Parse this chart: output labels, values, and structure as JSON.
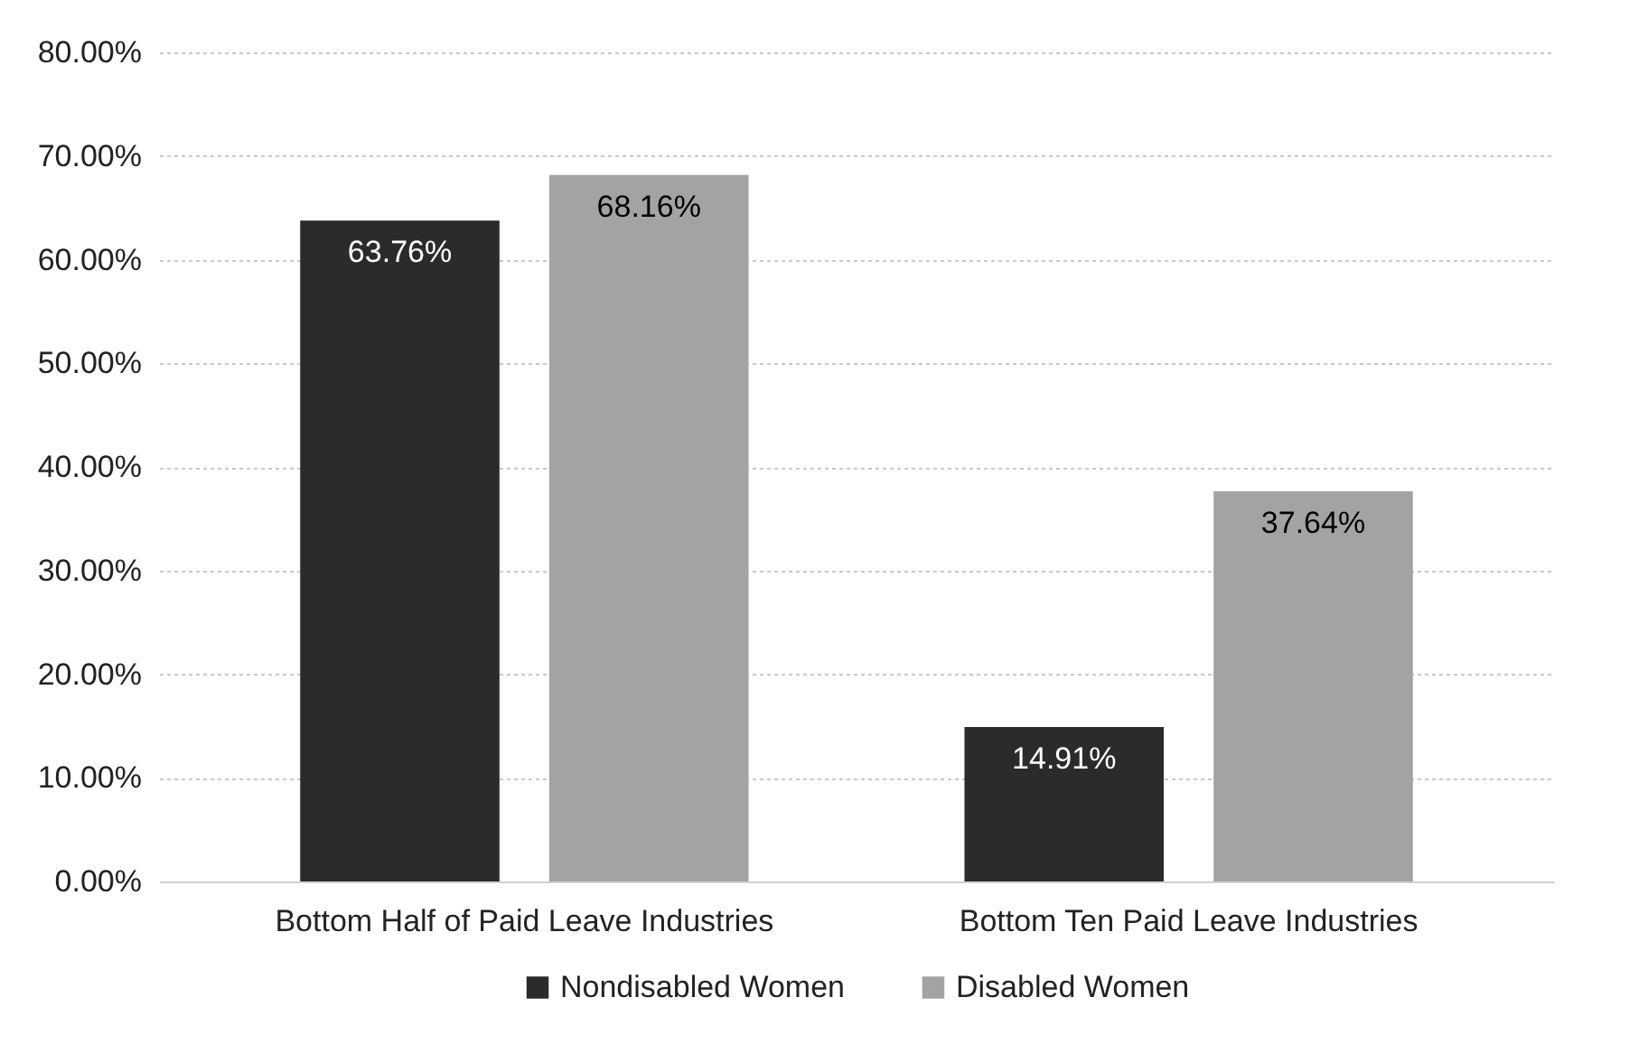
{
  "chart_data": {
    "type": "bar",
    "categories": [
      "Bottom Half of Paid Leave Industries",
      "Bottom Ten Paid Leave Industries"
    ],
    "series": [
      {
        "name": "Nondisabled Women",
        "color": "#2b2b2b",
        "values": [
          63.76,
          14.91
        ],
        "value_labels": [
          "63.76%",
          "14.91%"
        ]
      },
      {
        "name": "Disabled Women",
        "color": "#a3a3a3",
        "values": [
          68.16,
          37.64
        ],
        "value_labels": [
          "68.16%",
          "37.64%"
        ]
      }
    ],
    "ylim": [
      0,
      80
    ],
    "yticks": [
      {
        "value": 0,
        "label": "0.00%"
      },
      {
        "value": 10,
        "label": "10.00%"
      },
      {
        "value": 20,
        "label": "20.00%"
      },
      {
        "value": 30,
        "label": "30.00%"
      },
      {
        "value": 40,
        "label": "40.00%"
      },
      {
        "value": 50,
        "label": "50.00%"
      },
      {
        "value": 60,
        "label": "60.00%"
      },
      {
        "value": 70,
        "label": "70.00%"
      },
      {
        "value": 80,
        "label": "80.00%"
      }
    ],
    "grid": "y",
    "legend": "bottom"
  }
}
